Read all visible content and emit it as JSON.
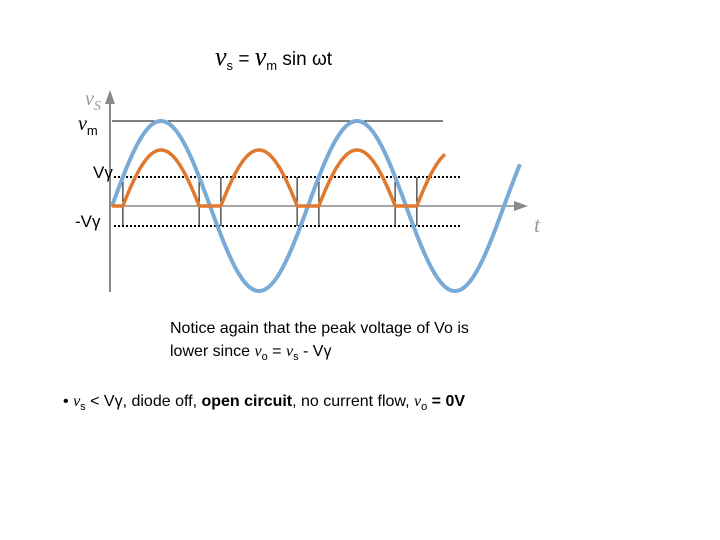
{
  "title": {
    "v1": "ν",
    "s1": "s",
    "eq": " = ",
    "v2": "ν",
    "s2": "m",
    "tail": " sin ωt"
  },
  "plot_labels": {
    "vm_v": "ν",
    "vm_sub": "m",
    "vgamma": "Vγ",
    "neg_vgamma": "-Vγ",
    "axis_y_v": "ν",
    "axis_y_sub": "S",
    "axis_t": "t"
  },
  "waveform": {
    "input_signal": "vs = vm sin ωt",
    "output_signal": "vo = |vs| - Vγ when |vs| > Vγ, else 0",
    "input_color": "#7aaad6",
    "output_color": "#e0782e",
    "threshold_style": "dotted"
  },
  "note": {
    "line1": "Notice again that the peak voltage of Vo is",
    "line2_a": "lower since ",
    "v_o": "ν",
    "sub_o": "o",
    "eq": " = ",
    "v_s": "ν",
    "sub_s": "s",
    "tail": " - Vγ"
  },
  "bullet": {
    "dot": "•",
    "v_s": "ν",
    "sub_s": "s",
    "cond": " < Vγ",
    "part1": ", diode off, ",
    "bold": "open circuit",
    "part2": ", no current flow, ",
    "v_o": "ν",
    "sub_o": "o",
    "result": " = 0V"
  }
}
